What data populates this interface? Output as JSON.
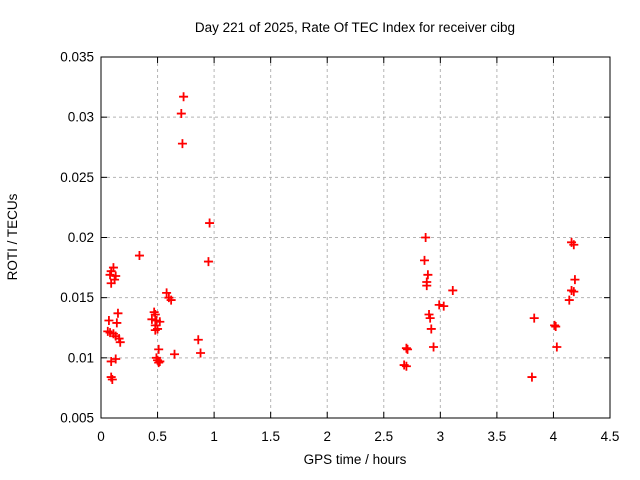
{
  "figure": {
    "title": "Day 221 of 2025, Rate Of TEC Index for receiver cibg",
    "xlabel": "GPS time / hours",
    "ylabel": "ROTI / TECUs"
  },
  "colors": {
    "marker": "#ff0000",
    "grid": "#b4b4b4",
    "border": "#000000",
    "background": "#ffffff"
  },
  "chart_data": {
    "type": "scatter",
    "title": "Day 221 of 2025, Rate Of TEC Index for receiver cibg",
    "xlabel": "GPS time / hours",
    "ylabel": "ROTI / TECUs",
    "xlim": [
      0,
      4.5
    ],
    "ylim": [
      0.005,
      0.035
    ],
    "xticks": {
      "values": [
        0,
        0.5,
        1,
        1.5,
        2,
        2.5,
        3,
        3.5,
        4,
        4.5
      ],
      "labels": [
        "0",
        "0.5",
        "1",
        "1.5",
        "2",
        "2.5",
        "3",
        "3.5",
        "4",
        "4.5"
      ]
    },
    "yticks": {
      "values": [
        0.005,
        0.01,
        0.015,
        0.02,
        0.025,
        0.03,
        0.035
      ],
      "labels": [
        "0.005",
        "0.01",
        "0.015",
        "0.02",
        "0.025",
        "0.03",
        "0.035"
      ]
    },
    "grid": "dashed-gray",
    "legend": "none",
    "marker": "plus",
    "series": [
      {
        "name": "ROTI",
        "color": "#ff0000",
        "points": [
          [
            0.34,
            0.0185
          ],
          [
            0.11,
            0.0175
          ],
          [
            0.09,
            0.0172
          ],
          [
            0.08,
            0.0169
          ],
          [
            0.13,
            0.0168
          ],
          [
            0.12,
            0.0165
          ],
          [
            0.09,
            0.0162
          ],
          [
            0.15,
            0.0137
          ],
          [
            0.07,
            0.0131
          ],
          [
            0.14,
            0.0129
          ],
          [
            0.06,
            0.0122
          ],
          [
            0.08,
            0.0121
          ],
          [
            0.11,
            0.012
          ],
          [
            0.13,
            0.0118
          ],
          [
            0.16,
            0.0116
          ],
          [
            0.17,
            0.0113
          ],
          [
            0.13,
            0.0099
          ],
          [
            0.09,
            0.0097
          ],
          [
            0.09,
            0.0084
          ],
          [
            0.1,
            0.0082
          ],
          [
            0.58,
            0.0154
          ],
          [
            0.6,
            0.015
          ],
          [
            0.62,
            0.0148
          ],
          [
            0.47,
            0.0138
          ],
          [
            0.48,
            0.0136
          ],
          [
            0.45,
            0.0132
          ],
          [
            0.49,
            0.0131
          ],
          [
            0.52,
            0.013
          ],
          [
            0.48,
            0.0127
          ],
          [
            0.5,
            0.0124
          ],
          [
            0.48,
            0.0123
          ],
          [
            0.51,
            0.0107
          ],
          [
            0.65,
            0.0103
          ],
          [
            0.49,
            0.01
          ],
          [
            0.5,
            0.0098
          ],
          [
            0.52,
            0.0097
          ],
          [
            0.51,
            0.0096
          ],
          [
            0.73,
            0.0317
          ],
          [
            0.71,
            0.0303
          ],
          [
            0.72,
            0.0278
          ],
          [
            0.96,
            0.0212
          ],
          [
            0.95,
            0.018
          ],
          [
            0.86,
            0.0115
          ],
          [
            0.88,
            0.0104
          ],
          [
            2.87,
            0.02
          ],
          [
            2.86,
            0.0181
          ],
          [
            2.89,
            0.0169
          ],
          [
            2.88,
            0.0163
          ],
          [
            2.88,
            0.016
          ],
          [
            3.11,
            0.0156
          ],
          [
            2.99,
            0.0144
          ],
          [
            3.03,
            0.0143
          ],
          [
            2.9,
            0.0136
          ],
          [
            2.91,
            0.0133
          ],
          [
            2.92,
            0.0124
          ],
          [
            2.94,
            0.0109
          ],
          [
            2.7,
            0.0108
          ],
          [
            2.71,
            0.0107
          ],
          [
            2.68,
            0.0094
          ],
          [
            2.7,
            0.0093
          ],
          [
            4.16,
            0.0196
          ],
          [
            4.18,
            0.0194
          ],
          [
            4.19,
            0.0165
          ],
          [
            4.16,
            0.0156
          ],
          [
            4.18,
            0.0155
          ],
          [
            4.14,
            0.0148
          ],
          [
            3.83,
            0.0133
          ],
          [
            4.01,
            0.0127
          ],
          [
            4.02,
            0.0126
          ],
          [
            4.03,
            0.0109
          ],
          [
            3.81,
            0.0084
          ]
        ]
      }
    ]
  }
}
